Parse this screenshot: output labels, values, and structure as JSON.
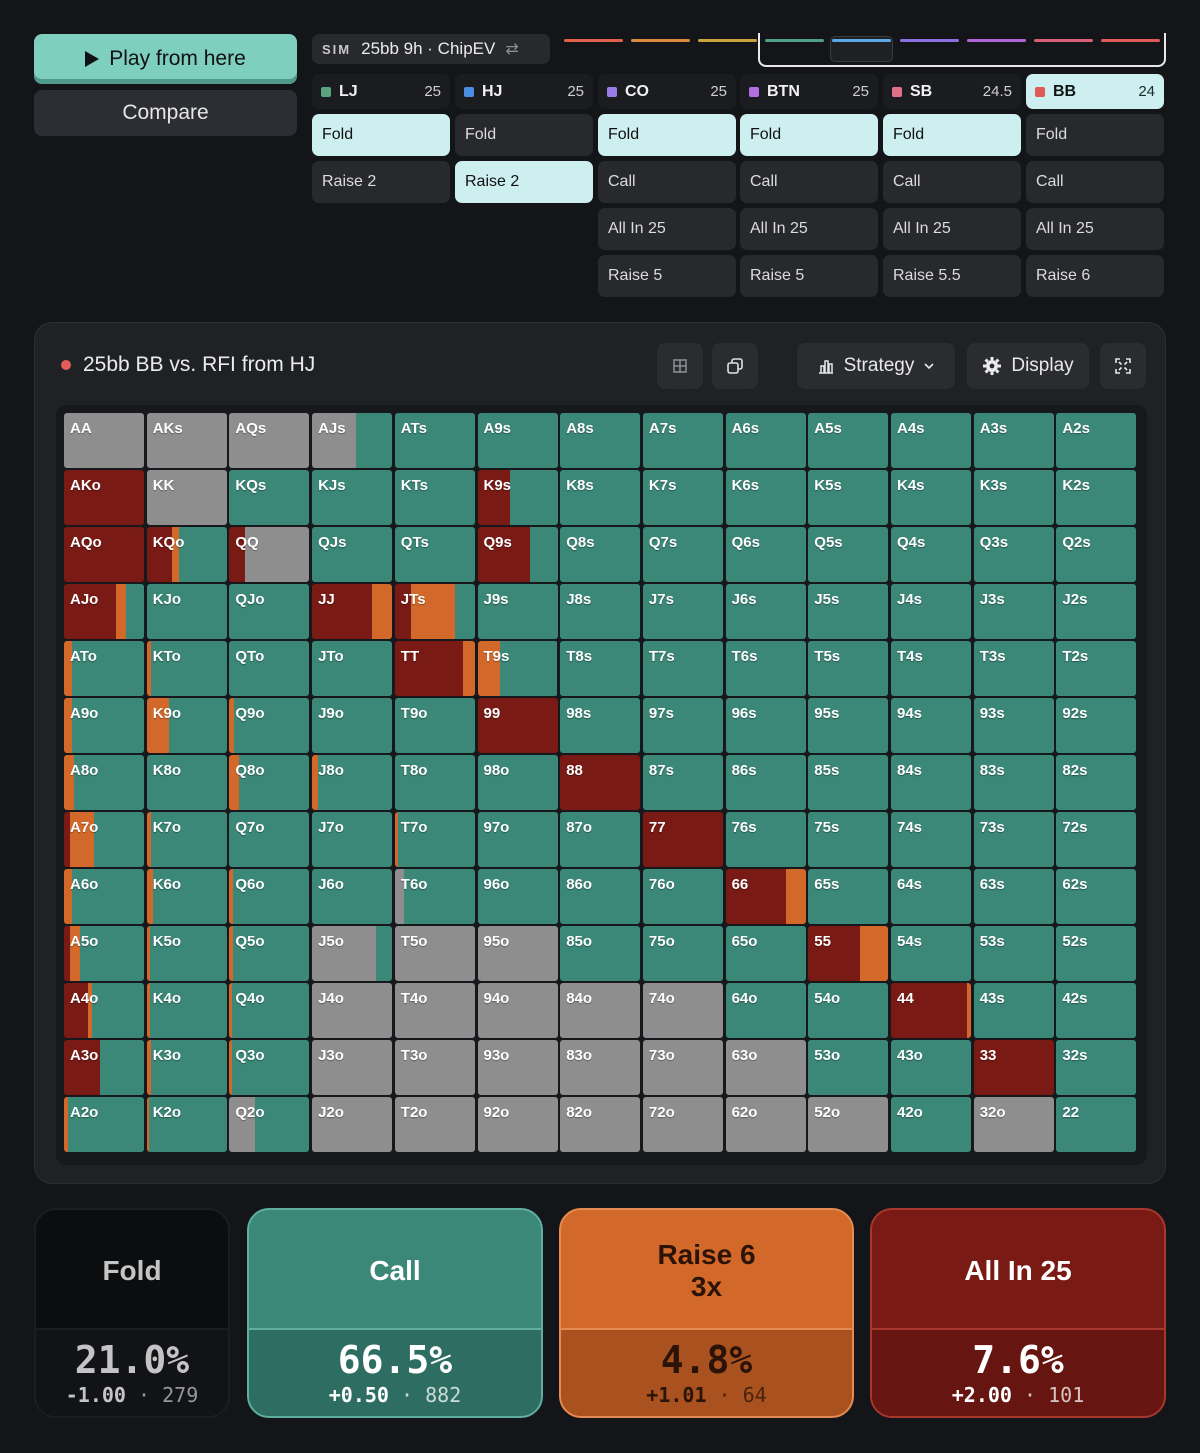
{
  "actions_top": {
    "play_label": "Play from here",
    "compare_label": "Compare"
  },
  "sim": {
    "tag": "SIM",
    "title": "25bb 9h · ChipEV",
    "swap_icon": "swap-icon"
  },
  "timeline_colors": [
    "#e0614a",
    "#d98a3d",
    "#c9a43c",
    "#4f9e8a",
    "#5aa9e6",
    "#8c6fe0",
    "#b066d9",
    "#d9607a",
    "#e05a5a"
  ],
  "positions": [
    {
      "name": "LJ",
      "stack": "25",
      "color": "#5aa57f",
      "actions": [
        "Fold",
        "Raise 2"
      ],
      "selected": 0
    },
    {
      "name": "HJ",
      "stack": "25",
      "color": "#4b8de0",
      "actions": [
        "Fold",
        "Raise 2"
      ],
      "selected": 1
    },
    {
      "name": "CO",
      "stack": "25",
      "color": "#9b7ae8",
      "actions": [
        "Fold",
        "Call",
        "All In 25",
        "Raise 5"
      ],
      "selected": 0
    },
    {
      "name": "BTN",
      "stack": "25",
      "color": "#b36ee0",
      "actions": [
        "Fold",
        "Call",
        "All In 25",
        "Raise 5"
      ],
      "selected": 0
    },
    {
      "name": "SB",
      "stack": "24.5",
      "color": "#e0708a",
      "actions": [
        "Fold",
        "Call",
        "All In 25",
        "Raise 5.5"
      ],
      "selected": 0
    },
    {
      "name": "BB",
      "stack": "24",
      "color": "#e05a5a",
      "actions": [
        "Fold",
        "Call",
        "All In 25",
        "Raise 6"
      ],
      "selected": -1,
      "active": true
    }
  ],
  "panel": {
    "title": "25bb BB vs. RFI from HJ",
    "strategy_label": "Strategy",
    "display_label": "Display"
  },
  "colors": {
    "fold": "#8e8e8e",
    "call": "#3b8778",
    "raise": "#d2692a",
    "allin": "#7a1a14"
  },
  "hands": [
    [
      "AA",
      "AKs",
      "AQs",
      "AJs",
      "ATs",
      "A9s",
      "A8s",
      "A7s",
      "A6s",
      "A5s",
      "A4s",
      "A3s",
      "A2s"
    ],
    [
      "AKo",
      "KK",
      "KQs",
      "KJs",
      "KTs",
      "K9s",
      "K8s",
      "K7s",
      "K6s",
      "K5s",
      "K4s",
      "K3s",
      "K2s"
    ],
    [
      "AQo",
      "KQo",
      "QQ",
      "QJs",
      "QTs",
      "Q9s",
      "Q8s",
      "Q7s",
      "Q6s",
      "Q5s",
      "Q4s",
      "Q3s",
      "Q2s"
    ],
    [
      "AJo",
      "KJo",
      "QJo",
      "JJ",
      "JTs",
      "J9s",
      "J8s",
      "J7s",
      "J6s",
      "J5s",
      "J4s",
      "J3s",
      "J2s"
    ],
    [
      "ATo",
      "KTo",
      "QTo",
      "JTo",
      "TT",
      "T9s",
      "T8s",
      "T7s",
      "T6s",
      "T5s",
      "T4s",
      "T3s",
      "T2s"
    ],
    [
      "A9o",
      "K9o",
      "Q9o",
      "J9o",
      "T9o",
      "99",
      "98s",
      "97s",
      "96s",
      "95s",
      "94s",
      "93s",
      "92s"
    ],
    [
      "A8o",
      "K8o",
      "Q8o",
      "J8o",
      "T8o",
      "98o",
      "88",
      "87s",
      "86s",
      "85s",
      "84s",
      "83s",
      "82s"
    ],
    [
      "A7o",
      "K7o",
      "Q7o",
      "J7o",
      "T7o",
      "97o",
      "87o",
      "77",
      "76s",
      "75s",
      "74s",
      "73s",
      "72s"
    ],
    [
      "A6o",
      "K6o",
      "Q6o",
      "J6o",
      "T6o",
      "96o",
      "86o",
      "76o",
      "66",
      "65s",
      "64s",
      "63s",
      "62s"
    ],
    [
      "A5o",
      "K5o",
      "Q5o",
      "J5o",
      "T5o",
      "95o",
      "85o",
      "75o",
      "65o",
      "55",
      "54s",
      "53s",
      "52s"
    ],
    [
      "A4o",
      "K4o",
      "Q4o",
      "J4o",
      "T4o",
      "94o",
      "84o",
      "74o",
      "64o",
      "54o",
      "44",
      "43s",
      "42s"
    ],
    [
      "A3o",
      "K3o",
      "Q3o",
      "J3o",
      "T3o",
      "93o",
      "83o",
      "73o",
      "63o",
      "53o",
      "43o",
      "33",
      "32s"
    ],
    [
      "A2o",
      "K2o",
      "Q2o",
      "J2o",
      "T2o",
      "92o",
      "82o",
      "72o",
      "62o",
      "52o",
      "42o",
      "32o",
      "22"
    ]
  ],
  "strategy": {
    "AA": [
      0,
      0,
      100,
      0
    ],
    "AKs": [
      0,
      0,
      100,
      0
    ],
    "AQs": [
      0,
      0,
      100,
      0
    ],
    "AJs": [
      0,
      0,
      55,
      45
    ],
    "AKo": [
      100,
      0,
      0,
      0
    ],
    "KK": [
      0,
      0,
      100,
      0
    ],
    "K9s": [
      40,
      0,
      0,
      60
    ],
    "AQo": [
      100,
      0,
      0,
      0
    ],
    "KQo": [
      32,
      8,
      0,
      60
    ],
    "QQ": [
      20,
      0,
      80,
      0
    ],
    "Q9s": [
      65,
      0,
      0,
      35
    ],
    "AJo": [
      65,
      12,
      0,
      23
    ],
    "JJ": [
      75,
      25,
      0,
      0
    ],
    "JTs": [
      20,
      55,
      0,
      25
    ],
    "ATo": [
      0,
      10,
      0,
      90
    ],
    "KTo": [
      0,
      5,
      0,
      95
    ],
    "TT": [
      85,
      15,
      0,
      0
    ],
    "T9s": [
      0,
      28,
      0,
      72
    ],
    "A9o": [
      0,
      10,
      0,
      90
    ],
    "K9o": [
      0,
      28,
      0,
      72
    ],
    "Q9o": [
      0,
      6,
      0,
      94
    ],
    "99": [
      100,
      0,
      0,
      0
    ],
    "A8o": [
      0,
      12,
      0,
      88
    ],
    "Q8o": [
      0,
      12,
      0,
      88
    ],
    "J8o": [
      0,
      8,
      0,
      92
    ],
    "88": [
      100,
      0,
      0,
      0
    ],
    "A7o": [
      8,
      30,
      0,
      62
    ],
    "K7o": [
      0,
      6,
      0,
      94
    ],
    "T7o": [
      0,
      4,
      0,
      96
    ],
    "77": [
      100,
      0,
      0,
      0
    ],
    "A6o": [
      0,
      10,
      0,
      90
    ],
    "K6o": [
      0,
      8,
      0,
      92
    ],
    "Q6o": [
      0,
      4,
      0,
      96
    ],
    "T6o": [
      0,
      0,
      12,
      88
    ],
    "66": [
      75,
      25,
      0,
      0
    ],
    "A5o": [
      8,
      12,
      0,
      80
    ],
    "K5o": [
      0,
      4,
      0,
      96
    ],
    "Q5o": [
      0,
      4,
      0,
      96
    ],
    "J5o": [
      0,
      0,
      80,
      20
    ],
    "55": [
      65,
      35,
      0,
      0
    ],
    "A4o": [
      30,
      5,
      0,
      65
    ],
    "K4o": [
      0,
      4,
      0,
      96
    ],
    "Q4o": [
      0,
      3,
      0,
      97
    ],
    "44": [
      95,
      5,
      0,
      0
    ],
    "A3o": [
      45,
      0,
      0,
      55
    ],
    "K3o": [
      0,
      6,
      0,
      94
    ],
    "Q3o": [
      0,
      3,
      0,
      97
    ],
    "33": [
      100,
      0,
      0,
      0
    ],
    "A2o": [
      0,
      5,
      0,
      95
    ],
    "K2o": [
      0,
      3,
      0,
      97
    ],
    "Q2o": [
      0,
      0,
      32,
      68
    ]
  },
  "fold_hands": [
    "T5o",
    "95o",
    "J4o",
    "T4o",
    "94o",
    "84o",
    "74o",
    "J3o",
    "T3o",
    "93o",
    "83o",
    "73o",
    "63o",
    "J2o",
    "T2o",
    "92o",
    "82o",
    "72o",
    "62o",
    "52o",
    "32o"
  ],
  "cards": [
    {
      "label": "Fold",
      "label2": "",
      "pct": "21.0%",
      "ev": "-1.00",
      "count": "279",
      "top": "#0c0d0f",
      "bottom": "#121316",
      "border": "#1c1d21",
      "text": "#c4c4c4"
    },
    {
      "label": "Call",
      "label2": "",
      "pct": "66.5%",
      "ev": "+0.50",
      "count": "882",
      "top": "#3b8778",
      "bottom": "#2e6e62",
      "border": "#5fae9e",
      "text": "#ffffff"
    },
    {
      "label": "Raise 6",
      "label2": "3x",
      "pct": "4.8%",
      "ev": "+1.01",
      "count": "64",
      "top": "#d2692a",
      "bottom": "#a9521f",
      "border": "#e48a52",
      "text": "#2b1308"
    },
    {
      "label": "All In 25",
      "label2": "",
      "pct": "7.6%",
      "ev": "+2.00",
      "count": "101",
      "top": "#7a1a14",
      "bottom": "#661510",
      "border": "#a8372d",
      "text": "#ffffff"
    }
  ]
}
